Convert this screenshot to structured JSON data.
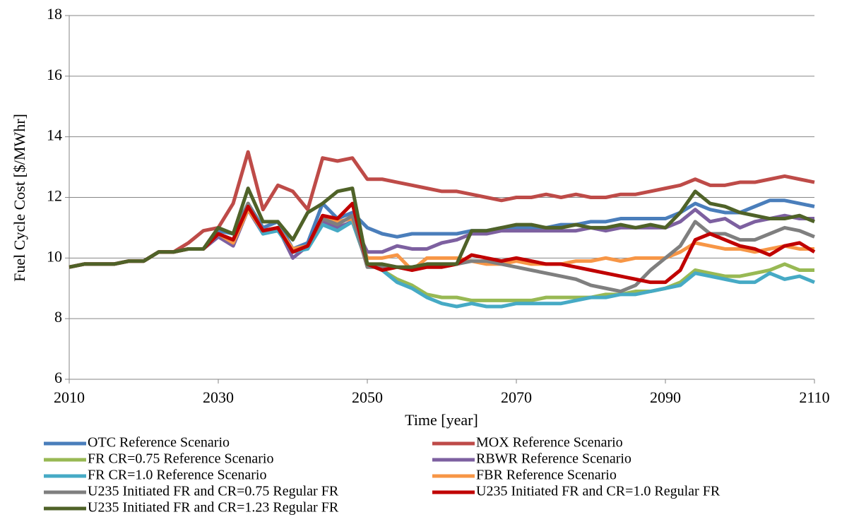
{
  "chart_data": {
    "type": "line",
    "x_label": "Time [year]",
    "y_label": "Fuel Cycle Cost [$/MWhr]",
    "x": [
      2010,
      2012,
      2014,
      2016,
      2018,
      2020,
      2022,
      2024,
      2026,
      2028,
      2030,
      2032,
      2034,
      2036,
      2038,
      2040,
      2042,
      2044,
      2046,
      2048,
      2050,
      2052,
      2054,
      2056,
      2058,
      2060,
      2062,
      2064,
      2066,
      2068,
      2070,
      2072,
      2074,
      2076,
      2078,
      2080,
      2082,
      2084,
      2086,
      2088,
      2090,
      2092,
      2094,
      2096,
      2098,
      2100,
      2102,
      2104,
      2106,
      2108,
      2110
    ],
    "xlim": [
      2010,
      2110
    ],
    "xticks": [
      2010,
      2030,
      2050,
      2070,
      2090,
      2110
    ],
    "ylim": [
      6,
      18
    ],
    "yticks": [
      6,
      8,
      10,
      12,
      14,
      16,
      18
    ],
    "grid": true,
    "legend": "bottom",
    "series": [
      {
        "name": "OTC Reference Scenario",
        "color": "#4a7ebb",
        "values": [
          9.7,
          9.8,
          9.8,
          9.8,
          9.9,
          9.9,
          10.2,
          10.2,
          10.3,
          10.3,
          10.9,
          10.8,
          11.8,
          11.0,
          11.2,
          10.3,
          10.5,
          11.8,
          11.3,
          11.5,
          11.0,
          10.8,
          10.7,
          10.8,
          10.8,
          10.8,
          10.8,
          10.9,
          10.9,
          11.0,
          11.0,
          11.0,
          11.0,
          11.1,
          11.1,
          11.2,
          11.2,
          11.3,
          11.3,
          11.3,
          11.3,
          11.5,
          11.8,
          11.6,
          11.5,
          11.5,
          11.7,
          11.9,
          11.9,
          11.8,
          11.7
        ]
      },
      {
        "name": "MOX Reference Scenario",
        "color": "#be4b48",
        "values": [
          9.7,
          9.8,
          9.8,
          9.8,
          9.9,
          9.9,
          10.2,
          10.2,
          10.5,
          10.9,
          11.0,
          11.8,
          13.5,
          11.6,
          12.4,
          12.2,
          11.6,
          13.3,
          13.2,
          13.3,
          12.6,
          12.6,
          12.5,
          12.4,
          12.3,
          12.2,
          12.2,
          12.1,
          12.0,
          11.9,
          12.0,
          12.0,
          12.1,
          12.0,
          12.1,
          12.0,
          12.0,
          12.1,
          12.1,
          12.2,
          12.3,
          12.4,
          12.6,
          12.4,
          12.4,
          12.5,
          12.5,
          12.6,
          12.7,
          12.6,
          12.5
        ]
      },
      {
        "name": "FR CR=0.75 Reference Scenario",
        "color": "#98b954",
        "values": [
          9.7,
          9.8,
          9.8,
          9.8,
          9.9,
          9.9,
          10.2,
          10.2,
          10.3,
          10.3,
          10.8,
          10.6,
          11.8,
          10.8,
          11.0,
          10.2,
          10.4,
          11.2,
          11.0,
          11.2,
          9.8,
          9.6,
          9.3,
          9.1,
          8.8,
          8.7,
          8.7,
          8.6,
          8.6,
          8.6,
          8.6,
          8.6,
          8.7,
          8.7,
          8.7,
          8.7,
          8.8,
          8.8,
          8.9,
          8.9,
          9.0,
          9.2,
          9.6,
          9.5,
          9.4,
          9.4,
          9.5,
          9.6,
          9.8,
          9.6,
          9.6
        ]
      },
      {
        "name": "RBWR Reference Scenario",
        "color": "#7d60a0",
        "values": [
          9.7,
          9.8,
          9.8,
          9.8,
          9.9,
          9.9,
          10.2,
          10.2,
          10.3,
          10.3,
          10.7,
          10.4,
          11.6,
          10.8,
          11.0,
          10.0,
          10.4,
          11.2,
          11.0,
          11.2,
          10.2,
          10.2,
          10.4,
          10.3,
          10.3,
          10.5,
          10.6,
          10.8,
          10.8,
          10.9,
          10.9,
          10.9,
          10.9,
          10.9,
          10.9,
          11.0,
          10.9,
          11.0,
          11.0,
          11.0,
          11.0,
          11.2,
          11.6,
          11.2,
          11.3,
          11.0,
          11.2,
          11.3,
          11.4,
          11.3,
          11.3
        ]
      },
      {
        "name": "FR CR=1.0 Reference Scenario",
        "color": "#46aac5",
        "values": [
          9.7,
          9.8,
          9.8,
          9.8,
          9.9,
          9.9,
          10.2,
          10.2,
          10.3,
          10.3,
          10.8,
          10.6,
          11.7,
          10.8,
          10.9,
          10.2,
          10.3,
          11.1,
          10.9,
          11.2,
          9.8,
          9.6,
          9.2,
          9.0,
          8.7,
          8.5,
          8.4,
          8.5,
          8.4,
          8.4,
          8.5,
          8.5,
          8.5,
          8.5,
          8.6,
          8.7,
          8.7,
          8.8,
          8.8,
          8.9,
          9.0,
          9.1,
          9.5,
          9.4,
          9.3,
          9.2,
          9.2,
          9.5,
          9.3,
          9.4,
          9.2
        ]
      },
      {
        "name": "FBR Reference Scenario",
        "color": "#f79646",
        "values": [
          9.7,
          9.8,
          9.8,
          9.8,
          9.9,
          9.9,
          10.2,
          10.2,
          10.3,
          10.3,
          10.8,
          10.5,
          11.6,
          10.9,
          11.0,
          10.3,
          10.4,
          11.3,
          11.2,
          11.3,
          10.0,
          10.0,
          10.1,
          9.6,
          10.0,
          10.0,
          10.0,
          9.9,
          9.8,
          9.8,
          9.9,
          9.8,
          9.8,
          9.8,
          9.9,
          9.9,
          10.0,
          9.9,
          10.0,
          10.0,
          10.0,
          10.2,
          10.5,
          10.4,
          10.3,
          10.3,
          10.2,
          10.3,
          10.4,
          10.3,
          10.3
        ]
      },
      {
        "name": "U235 Initiated FR and CR=0.75 Regular FR",
        "color": "#7f7f7f",
        "values": [
          9.7,
          9.8,
          9.8,
          9.8,
          9.9,
          9.9,
          10.2,
          10.2,
          10.3,
          10.3,
          10.8,
          10.6,
          11.8,
          10.9,
          11.0,
          10.2,
          10.4,
          11.3,
          11.1,
          11.4,
          9.7,
          9.7,
          9.7,
          9.7,
          9.8,
          9.8,
          9.8,
          9.9,
          9.9,
          9.8,
          9.7,
          9.6,
          9.5,
          9.4,
          9.3,
          9.1,
          9.0,
          8.9,
          9.1,
          9.6,
          10.0,
          10.4,
          11.2,
          10.8,
          10.8,
          10.6,
          10.6,
          10.8,
          11.0,
          10.9,
          10.7
        ]
      },
      {
        "name": "U235 Initiated FR and CR=1.0 Regular FR",
        "color": "#c00000",
        "values": [
          9.7,
          9.8,
          9.8,
          9.8,
          9.9,
          9.9,
          10.2,
          10.2,
          10.3,
          10.3,
          10.8,
          10.6,
          11.7,
          10.9,
          11.0,
          10.2,
          10.4,
          11.4,
          11.3,
          11.8,
          9.8,
          9.6,
          9.7,
          9.6,
          9.7,
          9.7,
          9.8,
          10.1,
          10.0,
          9.9,
          10.0,
          9.9,
          9.8,
          9.8,
          9.7,
          9.6,
          9.5,
          9.4,
          9.3,
          9.2,
          9.2,
          9.6,
          10.6,
          10.8,
          10.6,
          10.4,
          10.3,
          10.1,
          10.4,
          10.5,
          10.2
        ]
      },
      {
        "name": "U235 Initiated FR and CR=1.23 Regular FR",
        "color": "#4f6228",
        "values": [
          9.7,
          9.8,
          9.8,
          9.8,
          9.9,
          9.9,
          10.2,
          10.2,
          10.3,
          10.3,
          11.0,
          10.8,
          12.3,
          11.2,
          11.2,
          10.6,
          11.5,
          11.8,
          12.2,
          12.3,
          9.8,
          9.8,
          9.7,
          9.7,
          9.8,
          9.8,
          9.8,
          10.9,
          10.9,
          11.0,
          11.1,
          11.1,
          11.0,
          11.0,
          11.1,
          11.0,
          11.0,
          11.1,
          11.0,
          11.1,
          11.0,
          11.5,
          12.2,
          11.8,
          11.7,
          11.5,
          11.4,
          11.3,
          11.3,
          11.4,
          11.2
        ]
      }
    ]
  }
}
